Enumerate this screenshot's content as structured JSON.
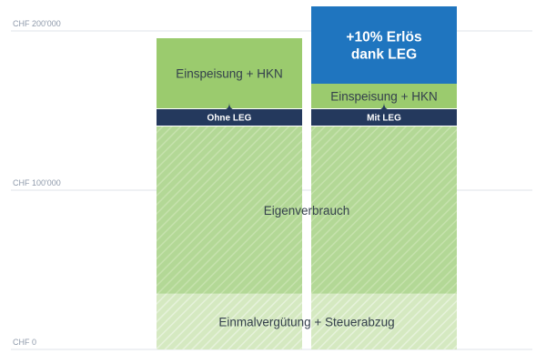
{
  "chart_data": {
    "type": "bar",
    "stacked": true,
    "categories": [
      "Ohne LEG",
      "Mit LEG"
    ],
    "y_ticks": [
      "CHF 0",
      "CHF 100'000",
      "CHF 200'000"
    ],
    "ylim": [
      0,
      220000
    ],
    "grid": true,
    "series": [
      {
        "name": "Einmalvergütung + Steuerabzug",
        "values": [
          35000,
          35000
        ],
        "color": "#d5e9c1",
        "pattern": "hatch"
      },
      {
        "name": "Eigenverbrauch",
        "values": [
          105000,
          105000
        ],
        "color": "#b3d896",
        "pattern": "hatch"
      },
      {
        "name": "Einspeisung + HKN",
        "values": [
          45000,
          17000
        ],
        "color": "#9bcb6e"
      },
      {
        "name": "+10% Erlös dank LEG",
        "values": [
          0,
          52000
        ],
        "color": "#1f75bf"
      }
    ],
    "colors": {
      "band": "#24395d",
      "grid": "#dfe3ea",
      "axis_text": "#8f9aab",
      "label_text": "#34404c"
    }
  }
}
